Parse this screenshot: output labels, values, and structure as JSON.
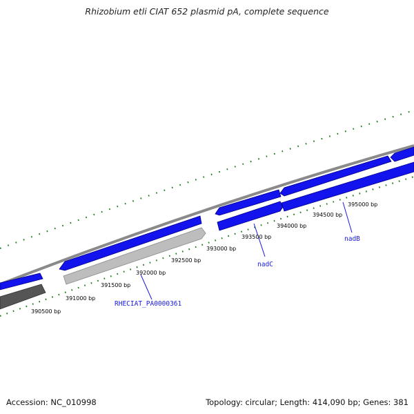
{
  "title": "Rhizobium etli CIAT 652 plasmid pA, complete sequence",
  "footer": {
    "accession": "Accession: NC_010998",
    "stats": "Topology: circular; Length: 414,090 bp; Genes: 381"
  },
  "colors": {
    "gene_blue": "#1313ee",
    "gene_blue_dark": "#00008b",
    "gene_gray_light": "#bdbdbd",
    "gene_gray_dark": "#555555",
    "backbone": "#8a8a8a",
    "tick_green": "#1a7a1a",
    "gene_label": "#1a1adf"
  },
  "position_labels": [
    "390500 bp",
    "391000 bp",
    "391500 bp",
    "392000 bp",
    "392500 bp",
    "393000 bp",
    "393500 bp",
    "394000 bp",
    "394500 bp",
    "395000 bp"
  ],
  "gene_labels": [
    "RHECIAT_PA0000361",
    "nadC",
    "nadB"
  ]
}
